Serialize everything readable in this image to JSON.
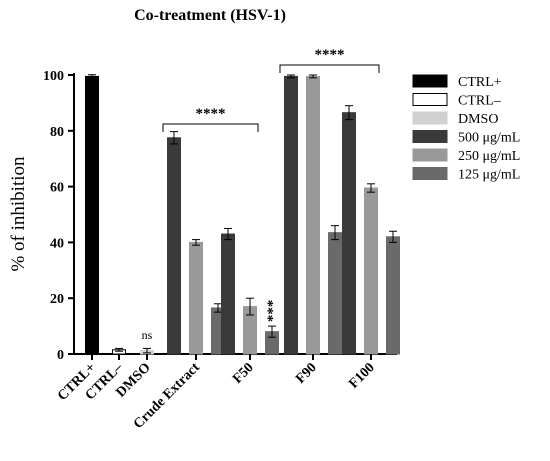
{
  "chart_data": {
    "type": "bar",
    "title": "Co-treatment (HSV-1)",
    "ylabel": "% of inhibition",
    "xlabel": "",
    "ylim": [
      0,
      100
    ],
    "yticks": [
      0,
      20,
      40,
      60,
      80,
      100
    ],
    "grid": false,
    "legend_placement": "right",
    "categories": [
      "CTRL+",
      "CTRL–",
      "DMSO",
      "Crude Extract",
      "F50",
      "F90",
      "F100"
    ],
    "legend": [
      {
        "name": "CTRL+",
        "color": "#000000",
        "stroke": "#000000"
      },
      {
        "name": "CTRL–",
        "color": "#ffffff",
        "stroke": "#000000"
      },
      {
        "name": "DMSO",
        "color": "#d0d0d0",
        "stroke": "#d0d0d0"
      },
      {
        "name": "500 μg/mL",
        "color": "#3a3a3a",
        "stroke": "#3a3a3a"
      },
      {
        "name": "250 μg/mL",
        "color": "#999999",
        "stroke": "#999999"
      },
      {
        "name": "125 μg/mL",
        "color": "#6a6a6a",
        "stroke": "#6a6a6a"
      }
    ],
    "bars": [
      {
        "category": "CTRL+",
        "series": "CTRL+",
        "value": 99.5,
        "error": 0.6
      },
      {
        "category": "CTRL–",
        "series": "CTRL–",
        "value": 1.5,
        "error": 0.5
      },
      {
        "category": "DMSO",
        "series": "DMSO",
        "value": 1.2,
        "error": 0.8
      },
      {
        "category": "Crude Extract",
        "series": "500 μg/mL",
        "value": 77.5,
        "error": 2.2
      },
      {
        "category": "Crude Extract",
        "series": "250 μg/mL",
        "value": 40.0,
        "error": 1.0
      },
      {
        "category": "Crude Extract",
        "series": "125 μg/mL",
        "value": 16.5,
        "error": 1.5
      },
      {
        "category": "F50",
        "series": "500 μg/mL",
        "value": 43.0,
        "error": 2.0
      },
      {
        "category": "F50",
        "series": "250 μg/mL",
        "value": 17.0,
        "error": 3.0
      },
      {
        "category": "F50",
        "series": "125 μg/mL",
        "value": 8.0,
        "error": 2.0
      },
      {
        "category": "F90",
        "series": "500 μg/mL",
        "value": 99.5,
        "error": 0.5
      },
      {
        "category": "F90",
        "series": "250 μg/mL",
        "value": 99.5,
        "error": 0.5
      },
      {
        "category": "F90",
        "series": "125 μg/mL",
        "value": 43.5,
        "error": 2.5
      },
      {
        "category": "F100",
        "series": "500 μg/mL",
        "value": 86.5,
        "error": 2.5
      },
      {
        "category": "F100",
        "series": "250 μg/mL",
        "value": 59.5,
        "error": 1.5
      },
      {
        "category": "F100",
        "series": "125 μg/mL",
        "value": 42.0,
        "error": 2.0
      }
    ],
    "annotations": [
      {
        "text": "ns",
        "category": "DMSO"
      },
      {
        "text": "****",
        "spans": [
          "Crude Extract",
          "F50"
        ]
      },
      {
        "text": "****",
        "spans": [
          "F90",
          "F100"
        ]
      },
      {
        "text": "***",
        "category": "F50",
        "series": "125 μg/mL"
      }
    ]
  }
}
